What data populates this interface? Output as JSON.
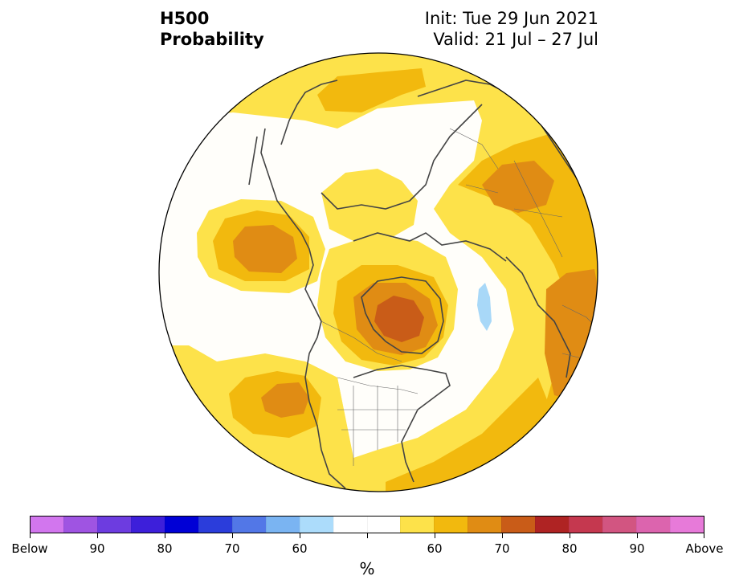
{
  "title": {
    "left_line1": "H500",
    "left_line2": "Probability",
    "right_line1": "Init: Tue 29 Jun 2021",
    "right_line2": "Valid: 21 Jul – 27 Jul"
  },
  "map": {
    "projection": "north-polar-stereographic",
    "colors": {
      "ocean_land_bg": "#fffefa",
      "above_55": "#fde24a",
      "above_60": "#f2b90e",
      "above_65": "#e08c14",
      "above_70": "#c95c18",
      "below_60": "#a8d8f8",
      "coastline": "#444444"
    }
  },
  "colorbar": {
    "unit": "%",
    "colors": [
      "#d276ee",
      "#9f54e2",
      "#6d3ce0",
      "#3d1fda",
      "#0000d6",
      "#2b3ddb",
      "#5277e7",
      "#7ab4f2",
      "#acdcfb",
      "#ffffff",
      "#ffffff",
      "#fde24a",
      "#f2b90e",
      "#e08c14",
      "#c95c18",
      "#af2323",
      "#c5384f",
      "#d25581",
      "#dc64ae",
      "#e77ad9"
    ],
    "labels": [
      "Below",
      "90",
      "80",
      "70",
      "60",
      "60",
      "70",
      "80",
      "90",
      "Above"
    ]
  }
}
